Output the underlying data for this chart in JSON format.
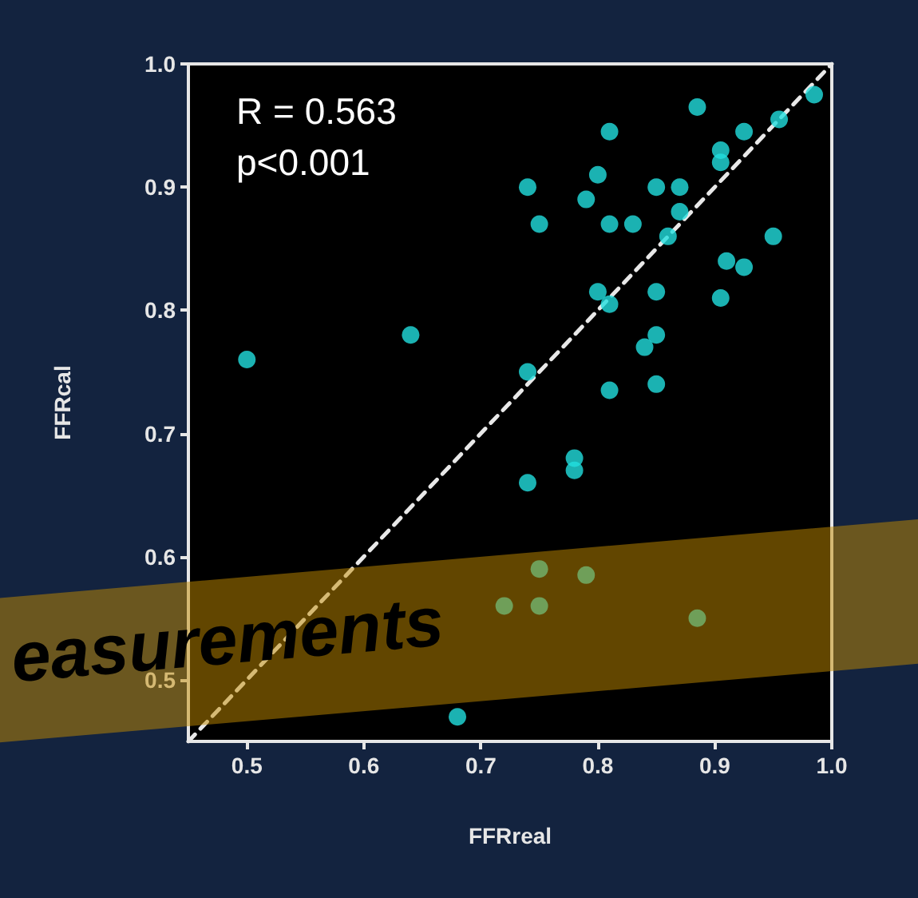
{
  "chart_data": {
    "type": "scatter",
    "xlabel": "FFRreal",
    "ylabel": "FFRcal",
    "annotations": [
      "R = 0.563",
      "p<0.001",
      "easurements"
    ],
    "xlim": [
      0.45,
      1.0
    ],
    "ylim": [
      0.45,
      1.0
    ],
    "xticks": [
      0.5,
      0.6,
      0.7,
      0.8,
      0.9,
      {
        "value": 1,
        "label": "1.0"
      }
    ],
    "yticks": [
      0.5,
      0.6,
      0.7,
      0.8,
      0.9,
      {
        "value": 1,
        "label": "1.0"
      }
    ],
    "grid": false,
    "marker": "circle",
    "series": [
      {
        "type": "scatter",
        "color": "#22dede",
        "x": [
          0.5,
          0.64,
          0.74,
          0.75,
          0.74,
          0.74,
          0.78,
          0.78,
          0.81,
          0.8,
          0.79,
          0.81,
          0.83,
          0.85,
          0.87,
          0.87,
          0.86,
          0.8,
          0.81,
          0.85,
          0.84,
          0.85,
          0.81,
          0.85,
          0.885,
          0.905,
          0.905,
          0.925,
          0.955,
          0.985,
          0.95,
          0.91,
          0.925,
          0.905,
          0.75,
          0.79,
          0.72,
          0.75,
          0.885,
          0.68
        ],
        "values": [
          0.76,
          0.78,
          0.9,
          0.87,
          0.75,
          0.66,
          0.68,
          0.67,
          0.945,
          0.91,
          0.89,
          0.87,
          0.87,
          0.9,
          0.9,
          0.88,
          0.86,
          0.815,
          0.805,
          0.815,
          0.77,
          0.78,
          0.735,
          0.74,
          0.965,
          0.93,
          0.92,
          0.945,
          0.955,
          0.975,
          0.86,
          0.84,
          0.835,
          0.81,
          0.59,
          0.585,
          0.56,
          0.56,
          0.55,
          0.47
        ]
      },
      {
        "type": "line",
        "color": "#e8e8e8",
        "line_style": "dashed",
        "marker": "none",
        "x": [
          0.45,
          1.0
        ],
        "values": [
          0.45,
          1.0
        ]
      }
    ]
  }
}
